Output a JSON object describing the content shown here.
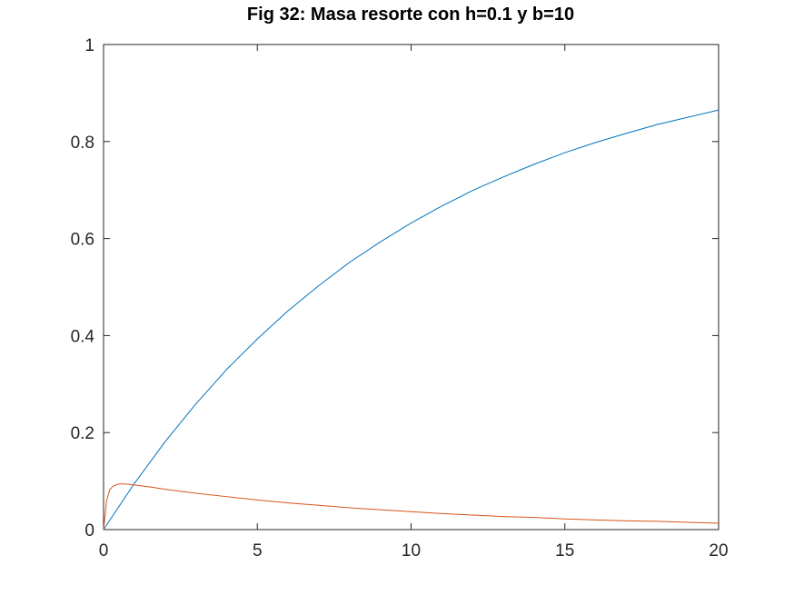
{
  "chart_data": {
    "type": "line",
    "title": "Fig 32: Masa resorte con h=0.1 y b=10",
    "xlabel": "",
    "ylabel": "",
    "xlim": [
      0,
      20
    ],
    "ylim": [
      0,
      1
    ],
    "xticks": [
      0,
      5,
      10,
      15,
      20
    ],
    "xtick_labels": [
      "0",
      "5",
      "10",
      "15",
      "20"
    ],
    "yticks": [
      0,
      0.2,
      0.4,
      0.6,
      0.8,
      1
    ],
    "ytick_labels": [
      "0",
      "0.2",
      "0.4",
      "0.6",
      "0.8",
      "1"
    ],
    "grid": false,
    "legend": "none",
    "series": [
      {
        "color": "#0072bd",
        "x": [
          0,
          1,
          2,
          3,
          4,
          5,
          6,
          7,
          8,
          9,
          10,
          11,
          12,
          13,
          14,
          15,
          16,
          17,
          18,
          19,
          20
        ],
        "y": [
          0,
          0.095,
          0.181,
          0.259,
          0.33,
          0.393,
          0.451,
          0.503,
          0.551,
          0.593,
          0.632,
          0.667,
          0.699,
          0.727,
          0.753,
          0.777,
          0.798,
          0.817,
          0.835,
          0.85,
          0.865
        ]
      },
      {
        "color": "#d95319",
        "x": [
          0,
          0.1,
          0.2,
          0.3,
          0.4,
          0.5,
          0.7,
          1,
          1.5,
          2,
          3,
          4,
          5,
          6,
          7,
          8,
          9,
          10,
          11,
          12,
          13,
          14,
          15,
          16,
          17,
          18,
          19,
          20
        ],
        "y": [
          0,
          0.06,
          0.082,
          0.089,
          0.092,
          0.094,
          0.094,
          0.092,
          0.088,
          0.083,
          0.075,
          0.068,
          0.061,
          0.055,
          0.05,
          0.045,
          0.041,
          0.037,
          0.033,
          0.03,
          0.027,
          0.025,
          0.022,
          0.02,
          0.018,
          0.017,
          0.015,
          0.013
        ]
      }
    ]
  }
}
